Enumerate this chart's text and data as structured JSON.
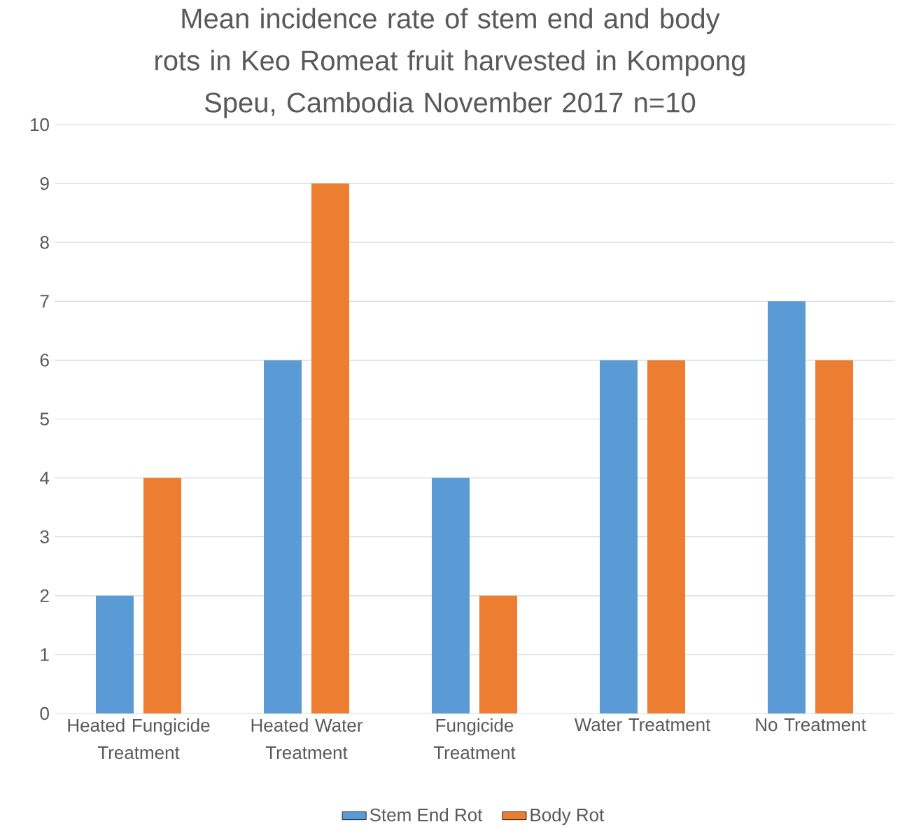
{
  "chart_data": {
    "type": "bar",
    "title": "Mean incidence rate of stem end and body rots in Keo Romeat fruit harvested in Kompong Speu, Cambodia November 2017 n=10",
    "categories": [
      "Heated Fungicide Treatment",
      "Heated Water Treatment",
      "Fungicide Treatment",
      "Water Treatment",
      "No Treatment"
    ],
    "series": [
      {
        "name": "Stem End Rot",
        "color": "#5b9bd5",
        "values": [
          2,
          6,
          4,
          6,
          7
        ]
      },
      {
        "name": "Body Rot",
        "color": "#ed7d31",
        "values": [
          4,
          9,
          2,
          6,
          6
        ]
      }
    ],
    "ylim": [
      0,
      10
    ],
    "yticks": [
      0,
      1,
      2,
      3,
      4,
      5,
      6,
      7,
      8,
      9,
      10
    ],
    "grid": "y",
    "legend": "bottom"
  }
}
